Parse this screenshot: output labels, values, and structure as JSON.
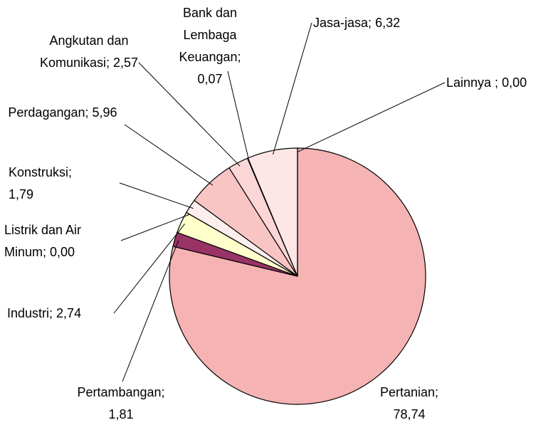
{
  "chart_data": {
    "type": "pie",
    "categories": [
      "Pertanian;",
      "Pertambangan;",
      "Industri;",
      "Listrik dan Air Minum;",
      "Konstruksi;",
      "Perdagangan;",
      "Angkutan dan Komunikasi;",
      "Bank dan Lembaga Keuangan;",
      "Jasa-jasa;",
      "Lainnya ;"
    ],
    "values": [
      78.74,
      1.81,
      2.74,
      0,
      1.79,
      5.96,
      2.57,
      0.07,
      6.32,
      0
    ],
    "value_labels": [
      "78,74",
      "1,81",
      "2,74",
      "0,00",
      "1,79",
      "5,96",
      "2,57",
      "0,07",
      "6,32",
      "0,00"
    ],
    "colors": [
      "#f6b3b3",
      "#993366",
      "#ffffcc",
      "#ffffff",
      "#fdeeee",
      "#f8c4c4",
      "#fbd6d6",
      "#ffffff",
      "#fde6e6",
      "#ffffff"
    ]
  }
}
